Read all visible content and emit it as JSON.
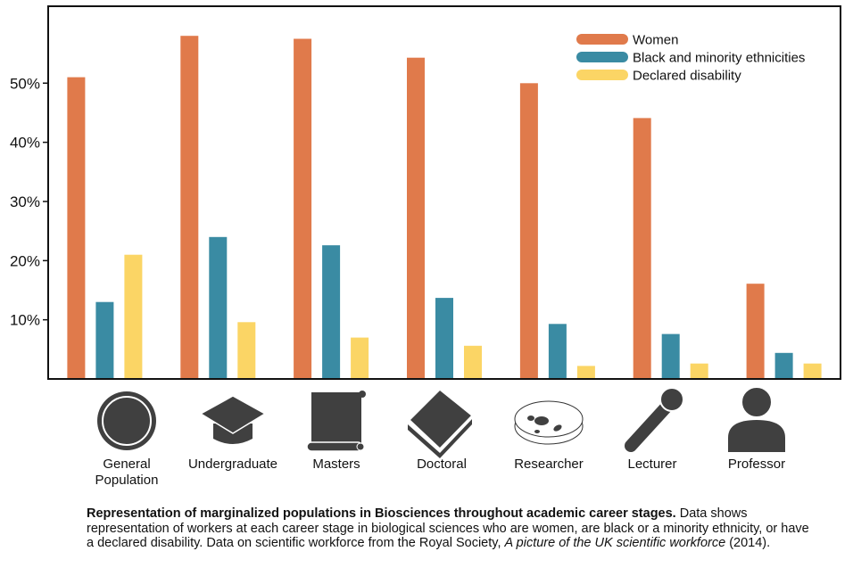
{
  "chart_data": {
    "type": "bar",
    "categories": [
      "General Population",
      "Undergraduate",
      "Masters",
      "Doctoral",
      "Researcher",
      "Lecturer",
      "Professor"
    ],
    "category_label_lines": [
      [
        "General",
        "Population"
      ],
      [
        "Undergraduate"
      ],
      [
        "Masters"
      ],
      [
        "Doctoral"
      ],
      [
        "Researcher"
      ],
      [
        "Lecturer"
      ],
      [
        "Professor"
      ]
    ],
    "category_icons": [
      "globe-icon",
      "graduation-cap-icon",
      "scroll-icon",
      "book-icon",
      "petri-dish-icon",
      "microphone-icon",
      "person-icon"
    ],
    "series": [
      {
        "name": "Women",
        "color": "#E07A4B",
        "values": [
          51,
          58,
          57.5,
          54.3,
          50,
          44.1,
          16.1
        ]
      },
      {
        "name": "Black and minority ethnicities",
        "color": "#3A8BA3",
        "values": [
          13,
          24,
          22.6,
          13.7,
          9.3,
          7.6,
          4.4
        ]
      },
      {
        "name": "Declared disability",
        "color": "#FBD565",
        "values": [
          21,
          9.6,
          7,
          5.6,
          2.2,
          2.6,
          2.6
        ]
      }
    ],
    "yticks": [
      10,
      20,
      30,
      40,
      50
    ],
    "ytick_labels": [
      "10%",
      "20%",
      "30%",
      "40%",
      "50%"
    ],
    "ylim": [
      0,
      63
    ],
    "legend_position": "top-right",
    "grid": false
  },
  "caption": {
    "bold": "Representation of marginalized populations in Biosciences throughout academic career stages.",
    "text1": " Data shows representation of workers at each career stage in biological sciences who are women, are black or a minority ethnicity, or have a declared disability. Data on scientific workforce from the Royal Society, ",
    "italic": "A picture of the UK scientific workforce",
    "text2": " (2014)."
  }
}
